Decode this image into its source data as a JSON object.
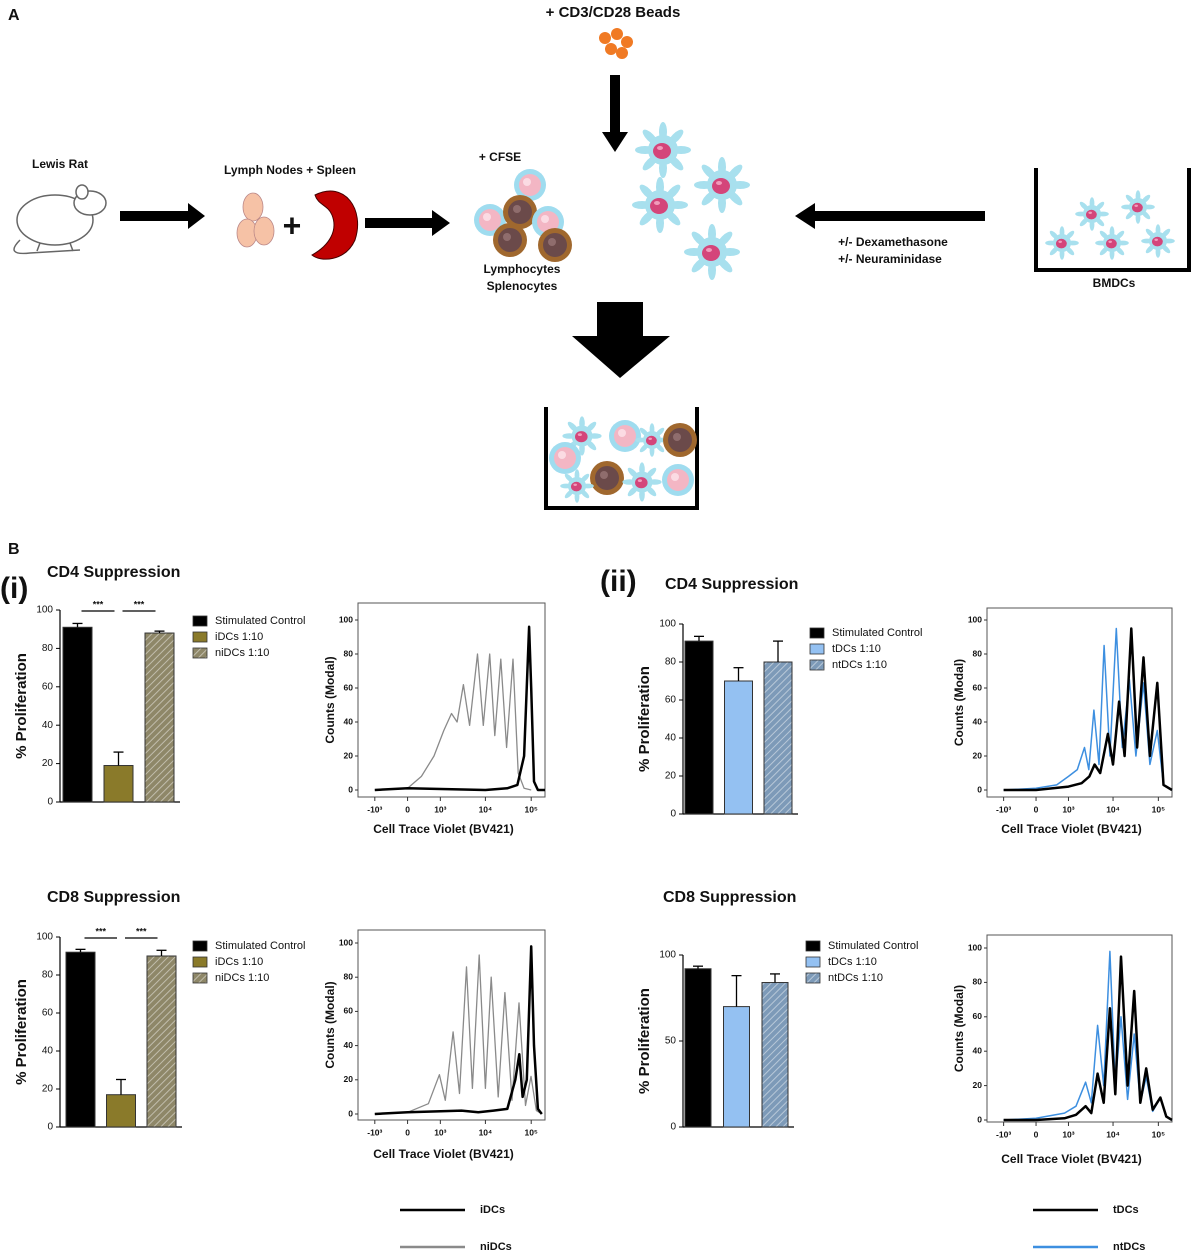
{
  "panel_labels": {
    "a": "A",
    "b": "B",
    "i": "(i)",
    "ii": "(ii)"
  },
  "diagram": {
    "beads_label": "+ CD3/CD28 Beads",
    "rat_label": "Lewis Rat",
    "organs_label": "Lymph Nodes + Spleen",
    "plus": "+",
    "cfse_label": "+ CFSE",
    "cells_label_1": "Lymphocytes",
    "cells_label_2": "Splenocytes",
    "treatment_1": "+/- Dexamethasone",
    "treatment_2": "+/- Neuraminidase",
    "bmdc_label": "BMDCs"
  },
  "chart_data": [
    {
      "type": "bar",
      "title": "CD4 Suppression",
      "ylabel": "% Proliferation",
      "ylim": [
        0,
        100
      ],
      "yticks": [
        0,
        20,
        40,
        60,
        80,
        100
      ],
      "significance": [
        "***",
        "***"
      ],
      "series": [
        {
          "name": "Stimulated Control",
          "color": "#000000",
          "values": [
            91
          ],
          "errors": [
            2
          ]
        },
        {
          "name": "iDCs 1:10",
          "color": "#8a7a2a",
          "values": [
            19
          ],
          "errors": [
            7
          ]
        },
        {
          "name": "niDCs 1:10",
          "color": "#8e8768",
          "hatch": true,
          "values": [
            88
          ],
          "errors": [
            1
          ]
        }
      ]
    },
    {
      "type": "line",
      "xscale": "biexponential",
      "xlabel": "Cell Trace Violet (BV421)",
      "ylabel": "Counts (Modal)",
      "xlim": [
        -2400,
        200000
      ],
      "ylim": [
        0,
        100
      ],
      "yticks": [
        0,
        20,
        40,
        60,
        80,
        100
      ],
      "xticks": [
        {
          "value": -1000,
          "label": "-10³"
        },
        0,
        {
          "value": 1000,
          "label": "10³"
        },
        {
          "value": 10000,
          "label": "10⁴"
        },
        {
          "value": 100000,
          "label": "10⁵"
        }
      ],
      "series": [
        {
          "color": "#8a8a8a",
          "linewidth": 1.3,
          "x": [
            -1000,
            0,
            300,
            700,
            1200,
            1800,
            2400,
            3300,
            4500,
            6700,
            9000,
            12400,
            16000,
            21700,
            29000,
            40000,
            52000,
            70000,
            100000
          ],
          "values": [
            0,
            1,
            8,
            20,
            35,
            45,
            40,
            62,
            38,
            80,
            38,
            80,
            32,
            77,
            25,
            77,
            10,
            1,
            0
          ]
        },
        {
          "color": "#000000",
          "linewidth": 2.5,
          "x": [
            -1000,
            0,
            10000,
            30000,
            50000,
            70000,
            90000,
            100000,
            115000,
            140000,
            200000
          ],
          "values": [
            0,
            1,
            0,
            1,
            3,
            20,
            96,
            60,
            5,
            0,
            0
          ]
        }
      ]
    },
    {
      "type": "bar",
      "title": "CD8 Suppression",
      "ylabel": "% Proliferation",
      "ylim": [
        0,
        100
      ],
      "yticks": [
        0,
        20,
        40,
        60,
        80,
        100
      ],
      "significance": [
        "***",
        "***"
      ],
      "series": [
        {
          "name": "Stimulated Control",
          "color": "#000000",
          "values": [
            92
          ],
          "errors": [
            1.5
          ]
        },
        {
          "name": "iDCs 1:10",
          "color": "#8a7a2a",
          "values": [
            17
          ],
          "errors": [
            8
          ]
        },
        {
          "name": "niDCs 1:10",
          "color": "#8e8768",
          "hatch": true,
          "values": [
            90
          ],
          "errors": [
            3
          ]
        }
      ]
    },
    {
      "type": "line",
      "xscale": "biexponential",
      "xlabel": "Cell Trace Violet (BV421)",
      "ylabel": "Counts (Modal)",
      "xlim": [
        -2400,
        200000
      ],
      "ylim": [
        0,
        100
      ],
      "yticks": [
        0,
        20,
        40,
        60,
        80,
        100
      ],
      "xticks": [
        {
          "value": -1000,
          "label": "-10³"
        },
        0,
        {
          "value": 1000,
          "label": "10³"
        },
        {
          "value": 10000,
          "label": "10⁴"
        },
        {
          "value": 100000,
          "label": "10⁵"
        }
      ],
      "series": [
        {
          "color": "#8a8a8a",
          "linewidth": 1.3,
          "x": [
            -1000,
            0,
            500,
            950,
            1300,
            1950,
            2700,
            3850,
            5200,
            7300,
            10000,
            13400,
            19000,
            26700,
            38000,
            54000,
            75000,
            99000,
            130000,
            170000
          ],
          "values": [
            0,
            1,
            6,
            23,
            8,
            48,
            12,
            86,
            15,
            93,
            15,
            80,
            10,
            71,
            8,
            65,
            5,
            22,
            2,
            0
          ]
        },
        {
          "color": "#000000",
          "linewidth": 2.5,
          "x": [
            -1000,
            0,
            3000,
            7000,
            15000,
            30000,
            45000,
            55000,
            65000,
            80000,
            100000,
            115000,
            140000,
            170000
          ],
          "values": [
            0,
            1,
            2,
            1,
            2,
            3,
            20,
            35,
            10,
            20,
            98,
            40,
            3,
            0
          ]
        }
      ]
    },
    {
      "type": "bar",
      "title": "CD4 Suppression",
      "ylabel": "% Proliferation",
      "ylim": [
        0,
        100
      ],
      "yticks": [
        0,
        20,
        40,
        60,
        80,
        100
      ],
      "series": [
        {
          "name": "Stimulated Control",
          "color": "#000000",
          "values": [
            91
          ],
          "errors": [
            2.5
          ]
        },
        {
          "name": "tDCs 1:10",
          "color": "#94c1f2",
          "values": [
            70
          ],
          "errors": [
            7
          ]
        },
        {
          "name": "ntDCs 1:10",
          "color": "#7d9ab8",
          "hatch": true,
          "values": [
            80
          ],
          "errors": [
            11
          ]
        }
      ]
    },
    {
      "type": "line",
      "xscale": "biexponential",
      "xlabel": "Cell Trace Violet (BV421)",
      "ylabel": "Counts (Modal)",
      "xlim": [
        -2400,
        200000
      ],
      "ylim": [
        0,
        100
      ],
      "yticks": [
        0,
        20,
        40,
        60,
        80,
        100
      ],
      "xticks": [
        {
          "value": -1000,
          "label": "-10³"
        },
        0,
        {
          "value": 1000,
          "label": "10³"
        },
        {
          "value": 10000,
          "label": "10⁴"
        },
        {
          "value": 100000,
          "label": "10⁵"
        }
      ],
      "series": [
        {
          "color": "#3d8fe0",
          "linewidth": 1.5,
          "x": [
            -1000,
            0,
            500,
            1000,
            1600,
            2330,
            2900,
            3770,
            4900,
            6350,
            8500,
            11800,
            16000,
            23000,
            32000,
            47000,
            65000,
            95000,
            130000,
            200000
          ],
          "values": [
            0,
            1,
            3,
            8,
            12,
            25,
            12,
            47,
            15,
            85,
            20,
            95,
            25,
            65,
            20,
            63,
            15,
            35,
            3,
            0
          ]
        },
        {
          "color": "#000000",
          "linewidth": 2.5,
          "x": [
            -1000,
            0,
            1000,
            2000,
            3000,
            3900,
            5200,
            7700,
            10000,
            13600,
            18000,
            25300,
            34000,
            47000,
            65000,
            95000,
            130000,
            200000
          ],
          "values": [
            0,
            0,
            2,
            4,
            8,
            15,
            10,
            33,
            15,
            52,
            20,
            95,
            25,
            78,
            20,
            63,
            3,
            0
          ]
        }
      ]
    },
    {
      "type": "bar",
      "title": "CD8 Suppression",
      "ylabel": "% Proliferation",
      "ylim": [
        0,
        100
      ],
      "yticks": [
        0,
        50,
        100
      ],
      "series": [
        {
          "name": "Stimulated Control",
          "color": "#000000",
          "values": [
            92
          ],
          "errors": [
            1.5
          ]
        },
        {
          "name": "tDCs 1:10",
          "color": "#94c1f2",
          "values": [
            70
          ],
          "errors": [
            18
          ]
        },
        {
          "name": "ntDCs 1:10",
          "color": "#7d9ab8",
          "hatch": true,
          "values": [
            84
          ],
          "errors": [
            5
          ]
        }
      ]
    },
    {
      "type": "line",
      "xscale": "biexponential",
      "xlabel": "Cell Trace Violet (BV421)",
      "ylabel": "Counts (Modal)",
      "xlim": [
        -2400,
        200000
      ],
      "ylim": [
        0,
        100
      ],
      "yticks": [
        0,
        20,
        40,
        60,
        80,
        100
      ],
      "xticks": [
        {
          "value": -1000,
          "label": "-10³"
        },
        0,
        {
          "value": 1000,
          "label": "10³"
        },
        {
          "value": 10000,
          "label": "10⁴"
        },
        {
          "value": 100000,
          "label": "10⁵"
        }
      ],
      "series": [
        {
          "color": "#3d8fe0",
          "linewidth": 1.5,
          "x": [
            -1000,
            0,
            800,
            1500,
            2460,
            3300,
            4560,
            6200,
            8500,
            11200,
            15000,
            21000,
            29300,
            40000,
            54000,
            75000,
            111000,
            150000,
            200000
          ],
          "values": [
            0,
            1,
            4,
            8,
            22,
            10,
            55,
            20,
            98,
            20,
            60,
            12,
            50,
            10,
            25,
            5,
            13,
            2,
            0
          ]
        },
        {
          "color": "#000000",
          "linewidth": 2.5,
          "x": [
            -1000,
            0,
            800,
            1500,
            2460,
            3300,
            4560,
            6200,
            8500,
            11200,
            15000,
            21000,
            29300,
            40000,
            54000,
            75000,
            111000,
            150000,
            200000
          ],
          "values": [
            0,
            0,
            1,
            3,
            8,
            4,
            27,
            10,
            65,
            15,
            95,
            20,
            75,
            10,
            30,
            6,
            13,
            2,
            0
          ]
        }
      ]
    }
  ],
  "line_legends": [
    [
      {
        "name": "iDCs",
        "color": "#000000",
        "linewidth": 2.5
      },
      {
        "name": "niDCs",
        "color": "#8a8a8a",
        "linewidth": 2.5
      }
    ],
    [
      {
        "name": "tDCs",
        "color": "#000000",
        "linewidth": 2.5
      },
      {
        "name": "ntDCs",
        "color": "#3d8fe0",
        "linewidth": 2.5
      }
    ]
  ]
}
